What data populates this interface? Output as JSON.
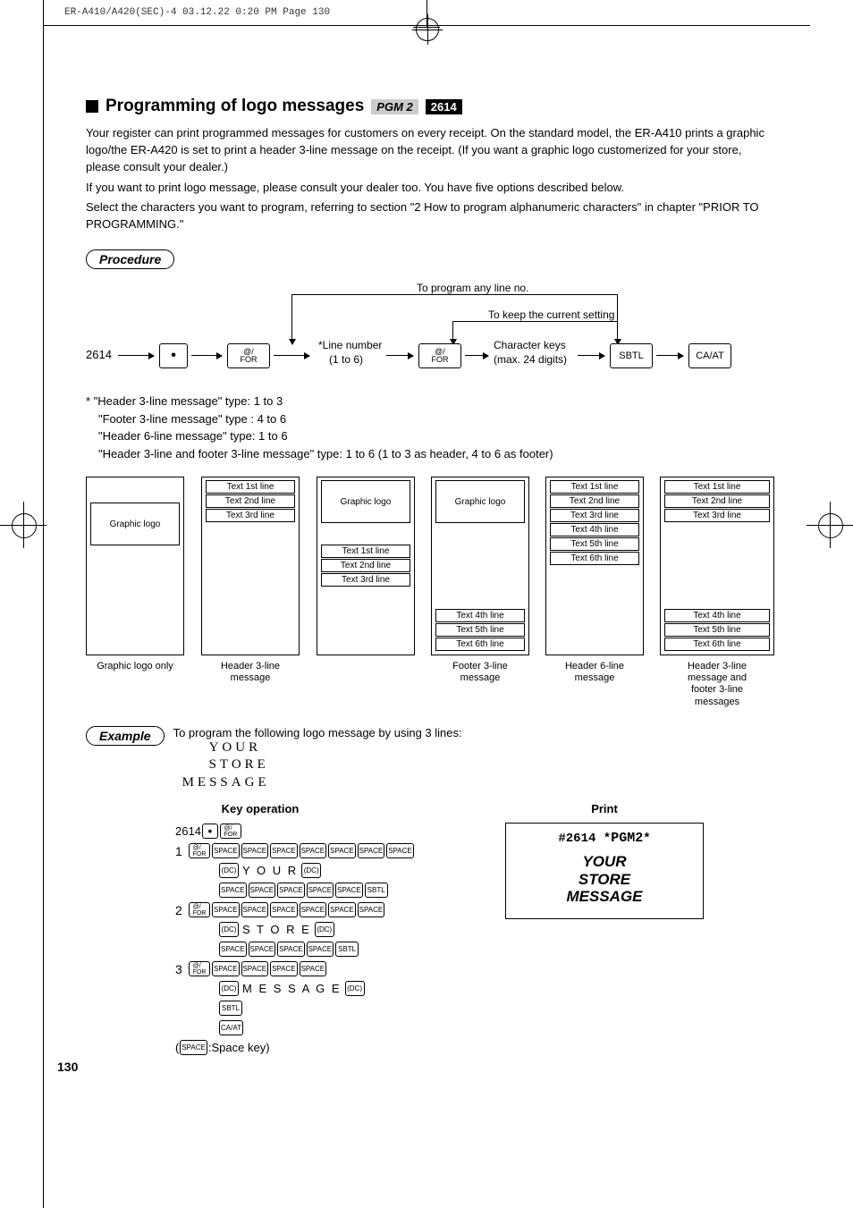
{
  "print_header": "ER-A410/A420(SEC)-4  03.12.22 0:20 PM  Page 130",
  "section": {
    "title": "Programming of logo messages",
    "pgm_badge": "PGM 2",
    "code_badge": "2614"
  },
  "paragraphs": [
    "Your register can print programmed messages for customers on every receipt. On the standard model, the ER-A410 prints a graphic logo/the ER-A420 is set to print a header 3-line message on the receipt. (If you want a graphic logo customerized for your store, please consult your dealer.)",
    "If you want to print logo message, please consult your dealer too. You have five options described below.",
    "Select the characters you want to program, referring to section \"2 How to program alphanumeric characters\" in chapter \"PRIOR TO PROGRAMMING.\""
  ],
  "procedure_label": "Procedure",
  "flow": {
    "top_label": "To program any line no.",
    "keep_label": "To keep the current setting",
    "start_code": "2614",
    "line_label": "*Line number",
    "line_range": "(1 to 6)",
    "char_label": "Character keys",
    "char_range": "(max. 24 digits)",
    "for_key": "@/\nFOR",
    "sbtl_key": "SBTL",
    "caat_key": "CA/AT"
  },
  "notes": [
    "*  \"Header 3-line message\" type: 1 to 3",
    "\"Footer 3-line message\" type  : 4 to 6",
    "\"Header 6-line message\" type: 1 to 6",
    "\"Header 3-line and footer 3-line message\" type: 1 to 6 (1 to 3 as header, 4 to 6 as footer)"
  ],
  "layouts": [
    {
      "caption": "Graphic logo only",
      "slots": [
        {
          "t": "Graphic logo",
          "logo": true
        }
      ]
    },
    {
      "caption": "Header 3-line message",
      "slots": [
        {
          "t": "Text 1st line"
        },
        {
          "t": "Text 2nd line"
        },
        {
          "t": "Text 3rd line"
        }
      ]
    },
    {
      "caption": "",
      "slots_top": [
        {
          "t": "Graphic logo",
          "logo": true
        }
      ],
      "slots_mid": [
        {
          "t": "Text 1st line"
        },
        {
          "t": "Text 2nd line"
        },
        {
          "t": "Text 3rd line"
        }
      ],
      "caption2": ""
    },
    {
      "caption": "Footer 3-line\nmessage",
      "slots_top": [
        {
          "t": "Graphic logo",
          "logo": true
        }
      ],
      "slots_bot": [
        {
          "t": "Text 4th line"
        },
        {
          "t": "Text 5th line"
        },
        {
          "t": "Text 6th line"
        }
      ]
    },
    {
      "caption": "Header 6-line\nmessage",
      "slots": [
        {
          "t": "Text 1st line"
        },
        {
          "t": "Text 2nd line"
        },
        {
          "t": "Text 3rd line"
        },
        {
          "t": "Text 4th line"
        },
        {
          "t": "Text 5th line"
        },
        {
          "t": "Text 6th line"
        }
      ]
    },
    {
      "caption": "Header 3-line\nmessage and\nfooter 3-line\nmessages",
      "slots_top3": [
        {
          "t": "Text 1st line"
        },
        {
          "t": "Text 2nd line"
        },
        {
          "t": "Text 3rd line"
        }
      ],
      "slots_bot": [
        {
          "t": "Text 4th line"
        },
        {
          "t": "Text 5th line"
        },
        {
          "t": "Text 6th line"
        }
      ]
    }
  ],
  "example_label": "Example",
  "example_intro": "To program the following logo message by using 3 lines:",
  "example_logo": [
    "YOUR",
    "STORE",
    "MESSAGE"
  ],
  "headers": {
    "key_op": "Key operation",
    "print": "Print"
  },
  "key_sequence": {
    "start": "2614",
    "lines": [
      {
        "n": "1",
        "spaces_before": 7,
        "word": "Y O U R",
        "spaces_after": 5,
        "sbtl": true
      },
      {
        "n": "2",
        "spaces_before": 6,
        "word": "S T O R E",
        "spaces_after": 4,
        "sbtl": true
      },
      {
        "n": "3",
        "spaces_before": 4,
        "word": "M E S S A G E",
        "spaces_after": 0,
        "sbtl": true,
        "caat": true
      }
    ],
    "footnote_prefix": "(",
    "footnote_key": "SPACE",
    "footnote_text": ":Space key)"
  },
  "print_result": {
    "header": "#2614 *PGM2*",
    "lines": [
      "YOUR",
      "STORE",
      "MESSAGE"
    ]
  },
  "page_number": "130"
}
